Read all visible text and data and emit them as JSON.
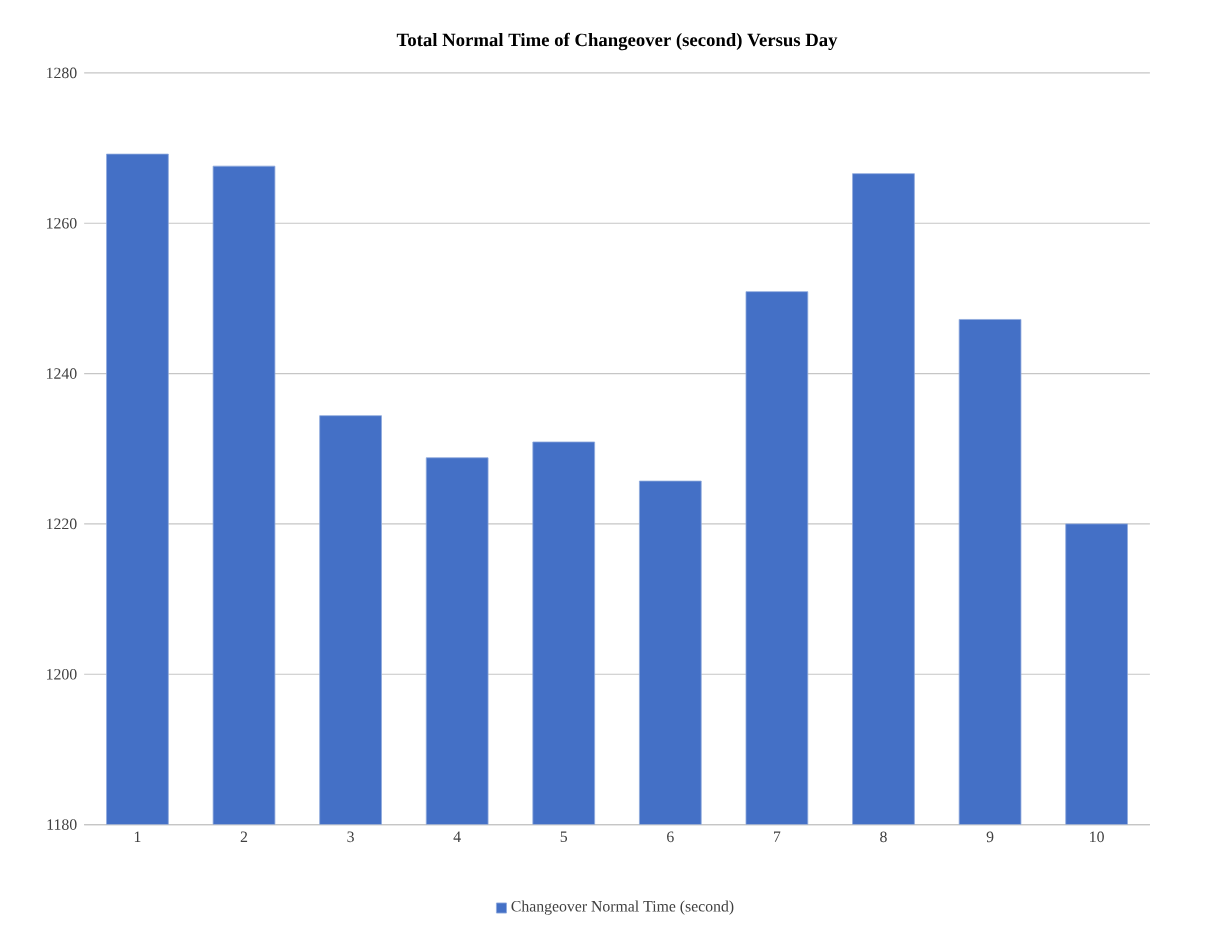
{
  "chart_data": {
    "type": "bar",
    "title": "Total Normal Time of Changeover (second) Versus Day",
    "categories": [
      "1",
      "2",
      "3",
      "4",
      "5",
      "6",
      "7",
      "8",
      "9",
      "10"
    ],
    "series": [
      {
        "name": "Changeover Normal Time (second)",
        "color": "#4470c6",
        "values": [
          1269.2,
          1267.6,
          1234.4,
          1228.8,
          1230.9,
          1225.7,
          1250.9,
          1266.6,
          1247.2,
          1220
        ]
      }
    ],
    "ylim": [
      1180,
      1280
    ],
    "yticks": [
      1180,
      1200,
      1220,
      1240,
      1260,
      1280
    ],
    "grid": "y",
    "legend": "bottom"
  }
}
